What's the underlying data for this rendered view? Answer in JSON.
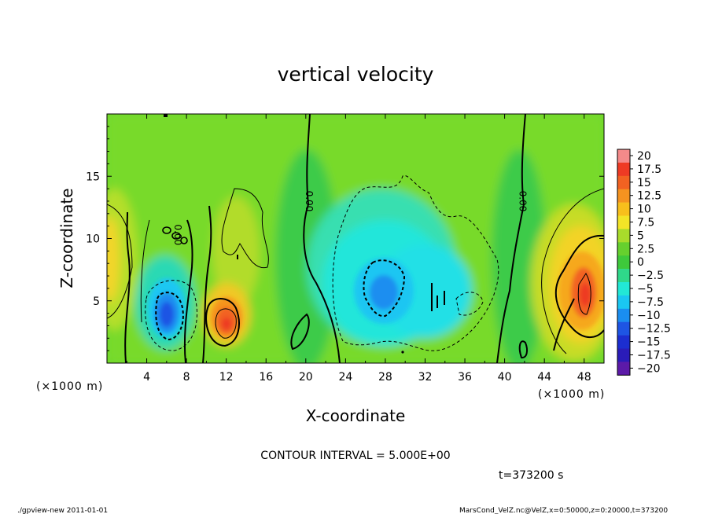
{
  "chart_data": {
    "type": "heatmap",
    "title": "vertical velocity",
    "xlabel": "X-coordinate",
    "ylabel": "Z-coordinate",
    "x_unit_label": "(×1000 m)",
    "xlim": [
      0,
      50
    ],
    "ylim": [
      0,
      20
    ],
    "x_ticks": [
      4,
      8,
      12,
      16,
      20,
      24,
      28,
      32,
      36,
      40,
      44,
      48
    ],
    "y_ticks": [
      5,
      10,
      15
    ],
    "colorbar": {
      "levels": [
        "20",
        "17.5",
        "15",
        "12.5",
        "10",
        "7.5",
        "5",
        "2.5",
        "0",
        "−2.5",
        "−5",
        "−7.5",
        "−10",
        "−12.5",
        "−15",
        "−17.5",
        "−20"
      ],
      "colors": [
        "#f48a8a",
        "#ee3a24",
        "#f26222",
        "#f59320",
        "#f8bf1c",
        "#f3e427",
        "#a9dc2b",
        "#66d02e",
        "#3ec93b",
        "#2fd88a",
        "#22e8d6",
        "#1ac7f2",
        "#1a8ef0",
        "#1e55e4",
        "#1c2ed0",
        "#2a1cb8",
        "#5c1aa8"
      ]
    },
    "features": [
      {
        "label": "updraft",
        "x": 12,
        "z": 3.5,
        "max": 12.5
      },
      {
        "label": "updraft",
        "x": 48,
        "z": 5.5,
        "max": 12.5
      },
      {
        "label": "downdraft",
        "x": 6.2,
        "z": 3.3,
        "min": -12.5
      },
      {
        "label": "downdraft",
        "x": 28,
        "z": 6,
        "min": -10
      }
    ],
    "contour_labels": [
      {
        "text": "0.00",
        "x": 20,
        "z": 13
      },
      {
        "text": "0.00",
        "x": 41.5,
        "z": 13
      },
      {
        "text": "0.00",
        "x": 6.8,
        "z": 10.3
      }
    ],
    "contour_interval_text": "CONTOUR INTERVAL = 5.000E+00",
    "time_text": "t=373200  s"
  },
  "footer": {
    "left": "./gpview-new  2011-01-01",
    "right": "MarsCond_VelZ.nc@VelZ,x=0:50000,z=0:20000,t=373200"
  }
}
